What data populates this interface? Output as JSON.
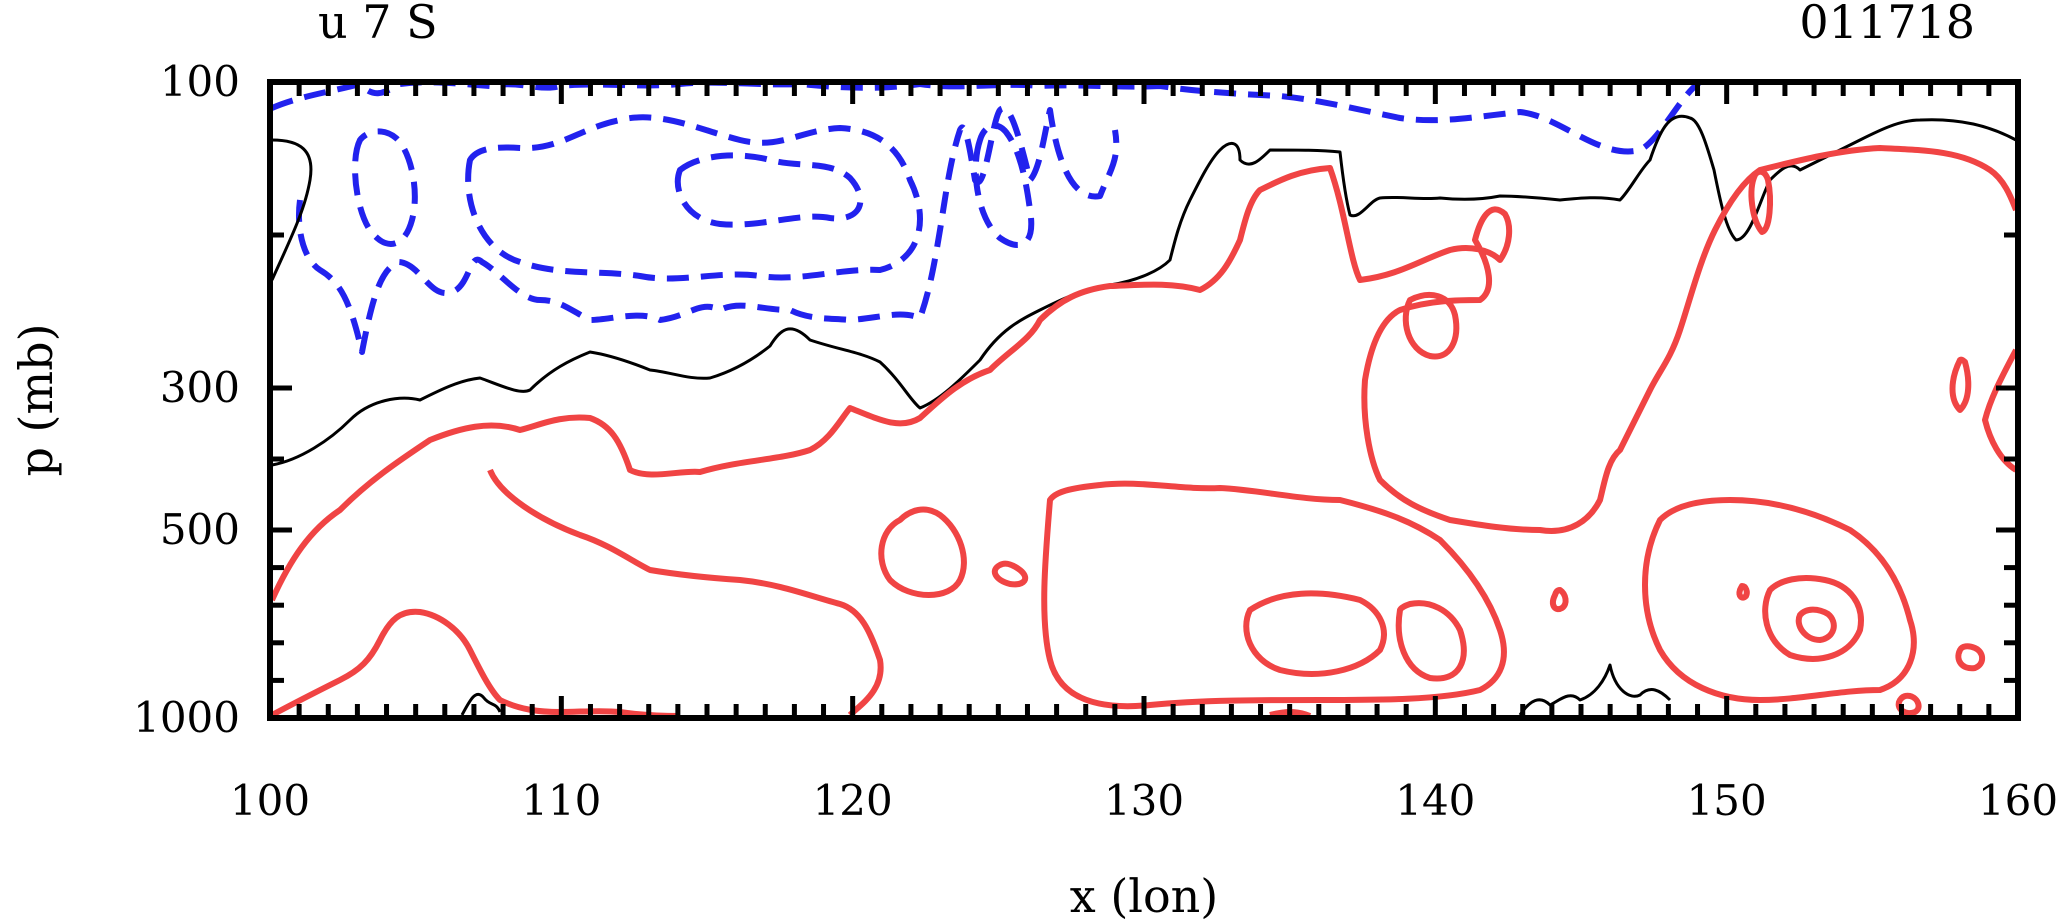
{
  "chart_data": {
    "type": "contour",
    "title_left": "u 7 S",
    "title_right": "011718",
    "xlabel": "x (lon)",
    "ylabel": "p (mb)",
    "x_range": [
      100,
      160
    ],
    "y_range": [
      1000,
      100
    ],
    "y_scale": "pressure (non-linear, reversed)",
    "x_ticks": [
      "100",
      "110",
      "120",
      "130",
      "140",
      "150",
      "160"
    ],
    "y_ticks": [
      "100",
      "300",
      "500",
      "1000"
    ],
    "grid": false,
    "legend": "none",
    "contour_styles": [
      {
        "sign": "negative",
        "line": "dashed",
        "color": "#2222ee"
      },
      {
        "sign": "zero",
        "line": "solid-thin",
        "color": "#000000"
      },
      {
        "sign": "positive",
        "line": "solid-thick",
        "color": "#f04444"
      }
    ]
  }
}
